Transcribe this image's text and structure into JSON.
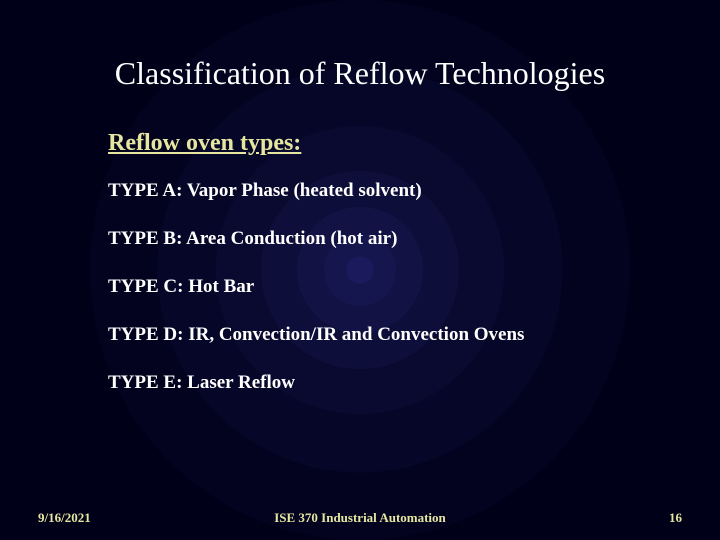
{
  "title": "Classification of Reflow Technologies",
  "subtitle": "Reflow oven types:",
  "items": [
    "TYPE A: Vapor Phase (heated solvent)",
    "TYPE B: Area Conduction (hot air)",
    "TYPE C: Hot Bar",
    "TYPE D: IR, Convection/IR and Convection Ovens",
    "TYPE E: Laser Reflow"
  ],
  "footer": {
    "date": "9/16/2021",
    "course": "ISE 370 Industrial Automation",
    "page": "16"
  },
  "colors": {
    "title_color": "#ffffff",
    "accent_color": "#e6e6a0",
    "body_color": "#ffffff",
    "bg_center": "#1a1a5c",
    "bg_outer": "#000019"
  },
  "fonts": {
    "title_size_pt": 32,
    "subtitle_size_pt": 24,
    "body_size_pt": 19,
    "footer_size_pt": 13,
    "family": "Times New Roman"
  }
}
